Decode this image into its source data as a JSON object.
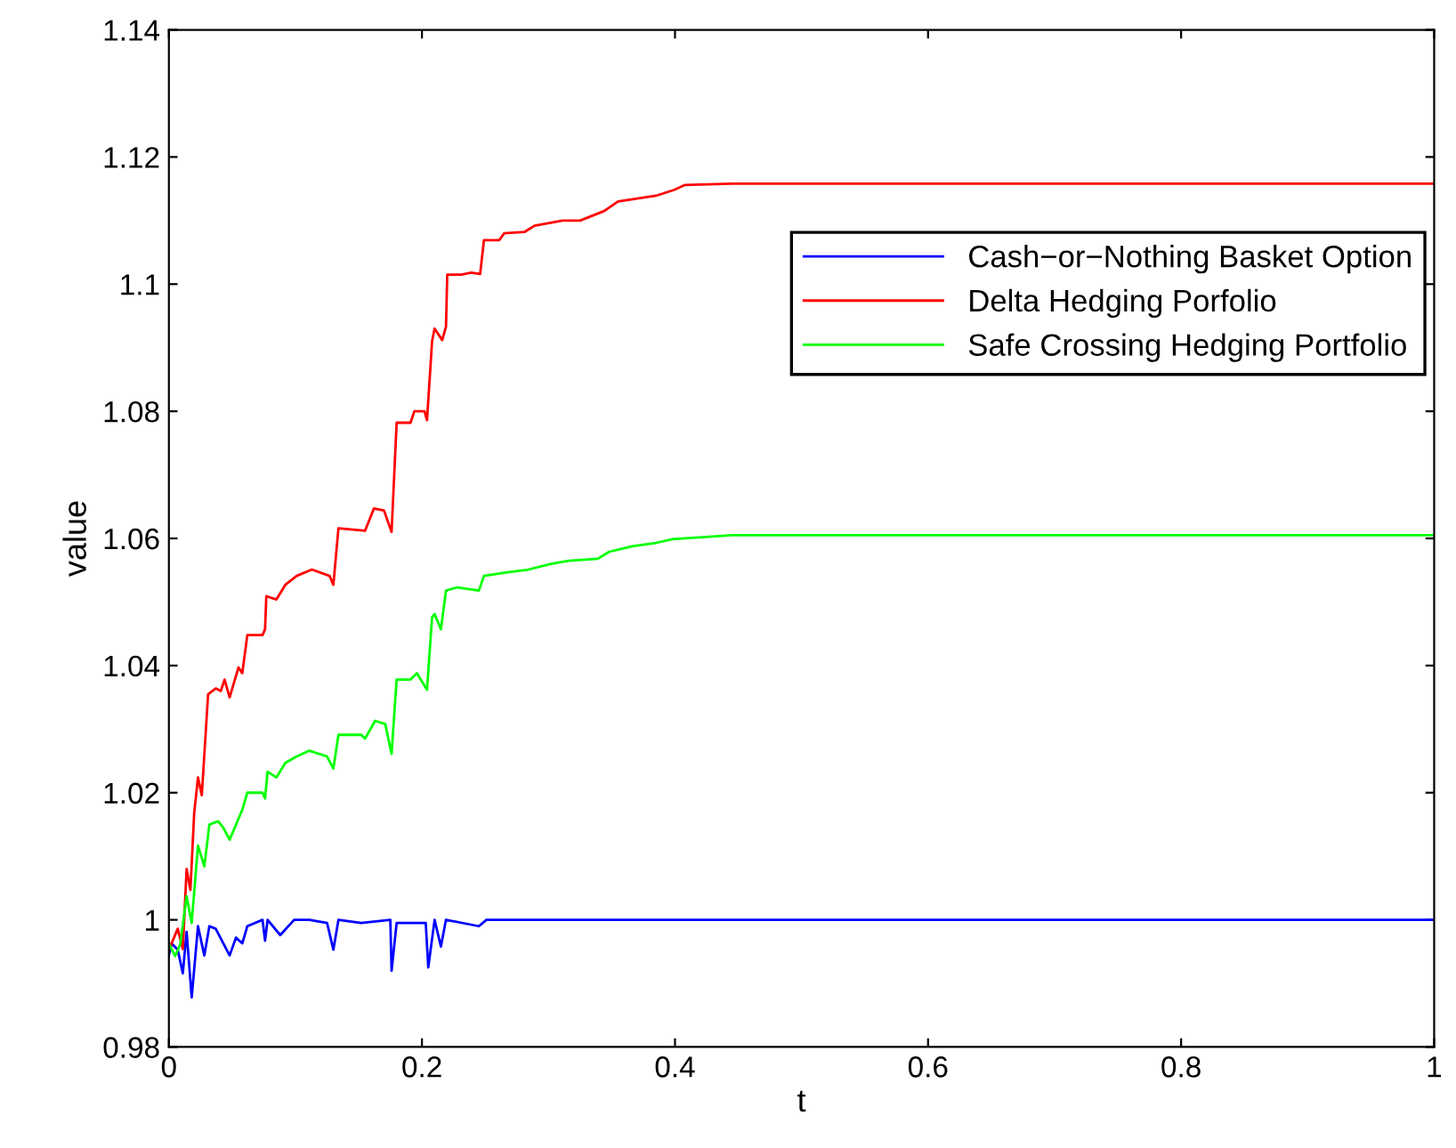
{
  "chart_data": {
    "type": "line",
    "xlabel": "t",
    "ylabel": "value",
    "xlim": [
      0,
      1
    ],
    "ylim": [
      0.98,
      1.14
    ],
    "xticks": [
      0,
      0.2,
      0.4,
      0.6,
      0.8,
      1
    ],
    "yticks": [
      0.98,
      1,
      1.02,
      1.04,
      1.06,
      1.08,
      1.1,
      1.12,
      1.14
    ],
    "grid": false,
    "legend": "top right",
    "line_style": "solid",
    "marker": "none",
    "series": [
      {
        "name": "Cash−or−Nothing Basket Option",
        "color": "#0000ff",
        "x": [
          0,
          0.002,
          0.007,
          0.011,
          0.014,
          0.018,
          0.023,
          0.028,
          0.032,
          0.037,
          0.048,
          0.053,
          0.058,
          0.062,
          0.074,
          0.076,
          0.078,
          0.088,
          0.099,
          0.111,
          0.125,
          0.13,
          0.134,
          0.152,
          0.175,
          0.176,
          0.18,
          0.203,
          0.205,
          0.21,
          0.215,
          0.219,
          0.245,
          0.251,
          0.263,
          0.4,
          1.0
        ],
        "values": [
          0.9944,
          0.9963,
          0.9953,
          0.9916,
          0.9981,
          0.9878,
          0.999,
          0.9944,
          0.999,
          0.9986,
          0.9944,
          0.9972,
          0.9963,
          0.999,
          1.0,
          0.9967,
          1.0,
          0.9976,
          1.0,
          1.0,
          0.9995,
          0.9953,
          1.0,
          0.9995,
          1.0,
          0.992,
          0.9995,
          0.9995,
          0.9925,
          1.0,
          0.9958,
          1.0,
          0.999,
          1.0,
          1.0,
          1.0,
          1.0
        ]
      },
      {
        "name": "Delta Hedging Porfolio",
        "color": "#ff0000",
        "x": [
          0,
          0.007,
          0.011,
          0.014,
          0.017,
          0.02,
          0.023,
          0.026,
          0.031,
          0.037,
          0.041,
          0.044,
          0.048,
          0.055,
          0.058,
          0.062,
          0.074,
          0.076,
          0.077,
          0.085,
          0.092,
          0.101,
          0.113,
          0.127,
          0.13,
          0.134,
          0.155,
          0.162,
          0.17,
          0.176,
          0.18,
          0.191,
          0.194,
          0.202,
          0.204,
          0.208,
          0.21,
          0.216,
          0.219,
          0.22,
          0.231,
          0.239,
          0.246,
          0.249,
          0.261,
          0.265,
          0.281,
          0.289,
          0.311,
          0.325,
          0.344,
          0.355,
          0.385,
          0.399,
          0.408,
          0.445,
          1.0
        ],
        "values": [
          0.9953,
          0.9986,
          0.9954,
          1.008,
          1.0047,
          1.0168,
          1.0224,
          1.0196,
          1.0355,
          1.0364,
          1.036,
          1.0378,
          1.035,
          1.0397,
          1.0388,
          1.0448,
          1.0448,
          1.0457,
          1.0509,
          1.0504,
          1.0527,
          1.0541,
          1.0551,
          1.0541,
          1.0527,
          1.0616,
          1.0612,
          1.0647,
          1.0644,
          1.061,
          1.0782,
          1.0782,
          1.08,
          1.08,
          1.0786,
          1.091,
          1.093,
          1.0912,
          1.0933,
          1.1015,
          1.1015,
          1.1018,
          1.1016,
          1.1069,
          1.1069,
          1.108,
          1.1082,
          1.1092,
          1.11,
          1.11,
          1.1115,
          1.113,
          1.1139,
          1.1148,
          1.1156,
          1.1158,
          1.1158
        ]
      },
      {
        "name": "Safe Crossing Hedging Portfolio",
        "color": "#00ff00",
        "x": [
          0,
          0.005,
          0.009,
          0.014,
          0.018,
          0.023,
          0.028,
          0.032,
          0.039,
          0.043,
          0.048,
          0.058,
          0.062,
          0.074,
          0.076,
          0.078,
          0.085,
          0.092,
          0.101,
          0.111,
          0.125,
          0.13,
          0.134,
          0.152,
          0.155,
          0.163,
          0.171,
          0.176,
          0.18,
          0.191,
          0.196,
          0.204,
          0.208,
          0.21,
          0.215,
          0.219,
          0.228,
          0.245,
          0.249,
          0.265,
          0.284,
          0.302,
          0.316,
          0.339,
          0.348,
          0.367,
          0.385,
          0.399,
          0.422,
          0.445,
          1.0
        ],
        "values": [
          0.9962,
          0.9943,
          0.9962,
          1.0037,
          0.9995,
          1.0117,
          1.0084,
          1.015,
          1.0155,
          1.0145,
          1.0126,
          1.0173,
          1.02,
          1.02,
          1.0191,
          1.0233,
          1.0224,
          1.0247,
          1.0257,
          1.0266,
          1.0257,
          1.0238,
          1.0291,
          1.0291,
          1.0285,
          1.0313,
          1.0308,
          1.0261,
          1.0378,
          1.0378,
          1.0388,
          1.0362,
          1.0476,
          1.0481,
          1.0457,
          1.0518,
          1.0523,
          1.0518,
          1.0541,
          1.0546,
          1.0551,
          1.056,
          1.0565,
          1.0568,
          1.0579,
          1.0588,
          1.0593,
          1.0599,
          1.0602,
          1.0605,
          1.0605
        ]
      }
    ]
  }
}
